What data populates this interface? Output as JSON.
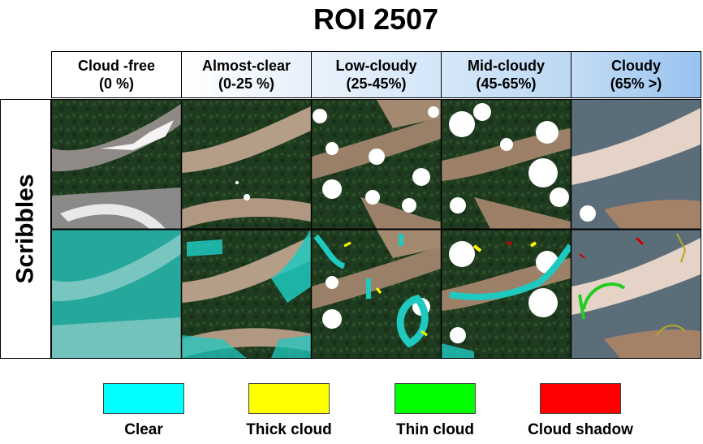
{
  "title": "ROI 2507",
  "columns": [
    {
      "name": "Cloud -free",
      "range": "(0 %)"
    },
    {
      "name": "Almost-clear",
      "range": "(0-25 %)"
    },
    {
      "name": "Low-cloudy",
      "range": "(25-45%)"
    },
    {
      "name": "Mid-cloudy",
      "range": "(45-65%)"
    },
    {
      "name": "Cloudy",
      "range": "(65% >)"
    }
  ],
  "row_label": "Scribbles",
  "legend": [
    {
      "label": "Clear",
      "color": "#00ffff"
    },
    {
      "label": "Thick cloud",
      "color": "#ffff00"
    },
    {
      "label": "Thin cloud",
      "color": "#00ff00"
    },
    {
      "label": "Cloud shadow",
      "color": "#ff0000"
    }
  ],
  "colors": {
    "vegetation": "#1e3a1e",
    "river": "#a78b72",
    "cloud": "#ffffff",
    "clear_scribble": "#1fc9c0",
    "thick_scribble": "#ffff00",
    "thin_scribble": "#22cc22",
    "shadow_scribble": "#cc0000"
  }
}
